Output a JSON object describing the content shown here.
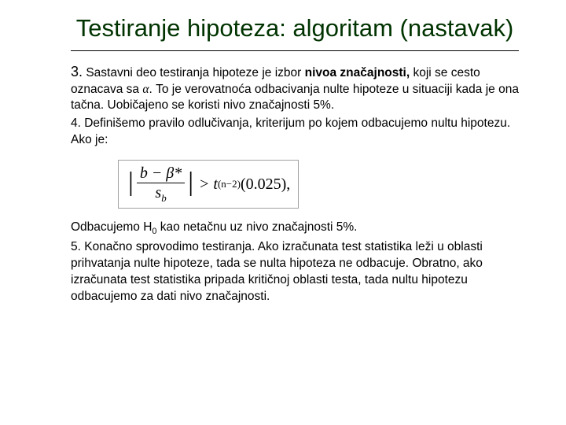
{
  "title": "Testiranje hipoteza: algoritam (nastavak)",
  "para1": {
    "num": "3.",
    "t1": "Sastavni deo testiranja hipoteze je izbor ",
    "bold": "nivoa značajnosti,",
    "t2": " koji se cesto oznacava sa ",
    "alpha": "α",
    "t3": ". To je verovatnoća odbacivanja nulte hipoteze u situaciji kada je ona tačna. Uobičajeno se koristi nivo značajnosti 5%."
  },
  "para2": {
    "t": "4. Definišemo pravilo odlučivanja, kriterijum po kojem odbacujemo nultu hipotezu. Ako je:"
  },
  "formula": {
    "num_top": "b − β*",
    "num_bot_var": "s",
    "num_bot_sub": "b",
    "gt": ">",
    "t_var": "t",
    "t_sub": "(n−2)",
    "arg": "(0.025)",
    "end": ","
  },
  "para3": {
    "t1": "Odbacujemo H",
    "sub0": "0",
    "t2": " kao netačnu uz nivo značajnosti 5%."
  },
  "para4": {
    "t": "5. Konačno sprovodimo testiranja. Ako izračunata test statistika leži u oblasti prihvatanja nulte hipoteze, tada se nulta hipoteza ne odbacuje. Obratno, ako izračunata test statistika pripada kritičnoj oblasti testa, tada nultu hipotezu odbacujemo za dati nivo značajnosti."
  },
  "colors": {
    "title": "#003300",
    "text": "#000000",
    "background": "#ffffff",
    "formula_border": "#a0a0a0"
  },
  "fonts": {
    "title_family": "Arial",
    "title_size_pt": 24,
    "body_family": "Verdana",
    "body_size_pt": 12,
    "formula_family": "Times New Roman"
  }
}
